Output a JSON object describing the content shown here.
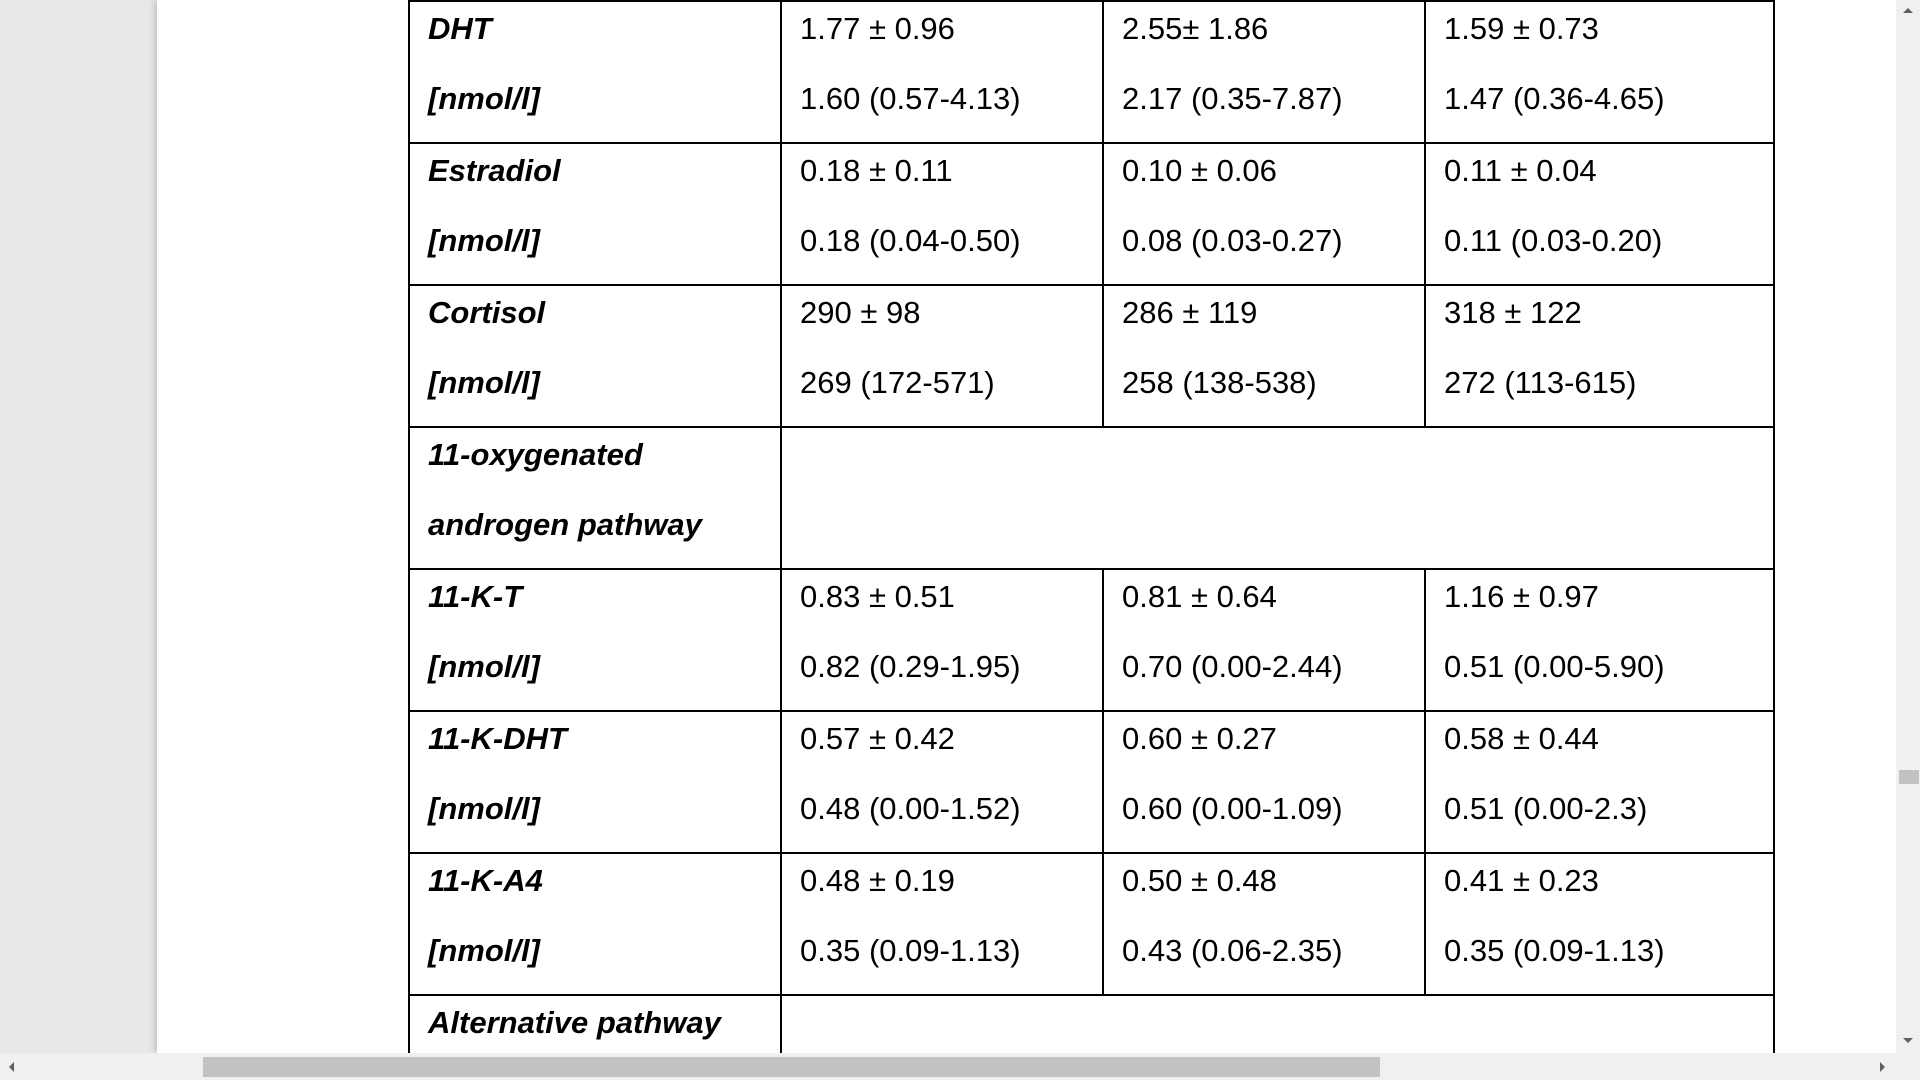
{
  "table": {
    "rows": [
      {
        "label": [
          "DHT",
          "[nmol/l]"
        ],
        "cells": [
          [
            "1.77 ± 0.96",
            "1.60 (0.57-4.13)"
          ],
          [
            "2.55± 1.86",
            "2.17 (0.35-7.87)"
          ],
          [
            "1.59 ± 0.73",
            "1.47 (0.36-4.65)"
          ]
        ]
      },
      {
        "label": [
          "Estradiol",
          "[nmol/l]"
        ],
        "cells": [
          [
            "0.18 ± 0.11",
            "0.18 (0.04-0.50)"
          ],
          [
            "0.10 ± 0.06",
            "0.08 (0.03-0.27)"
          ],
          [
            "0.11 ± 0.04",
            "0.11 (0.03-0.20)"
          ]
        ]
      },
      {
        "label": [
          "Cortisol",
          "[nmol/l]"
        ],
        "cells": [
          [
            "290 ± 98",
            "269 (172-571)"
          ],
          [
            "286 ± 119",
            "258 (138-538)"
          ],
          [
            "318 ± 122",
            "272 (113-615)"
          ]
        ]
      },
      {
        "label": [
          "11-oxygenated",
          "androgen pathway"
        ],
        "section": true
      },
      {
        "label": [
          "11-K-T",
          "[nmol/l]"
        ],
        "cells": [
          [
            "0.83 ± 0.51",
            "0.82 (0.29-1.95)"
          ],
          [
            "0.81 ± 0.64",
            "0.70 (0.00-2.44)"
          ],
          [
            "1.16 ± 0.97",
            "0.51 (0.00-5.90)"
          ]
        ]
      },
      {
        "label": [
          "11-K-DHT",
          "[nmol/l]"
        ],
        "cells": [
          [
            "0.57 ± 0.42",
            "0.48 (0.00-1.52)"
          ],
          [
            "0.60 ± 0.27",
            "0.60 (0.00-1.09)"
          ],
          [
            "0.58 ± 0.44",
            "0.51 (0.00-2.3)"
          ]
        ]
      },
      {
        "label": [
          "11-K-A4",
          "[nmol/l]"
        ],
        "cells": [
          [
            "0.48 ± 0.19",
            "0.35 (0.09-1.13)"
          ],
          [
            "0.50 ± 0.48",
            "0.43 (0.06-2.35)"
          ],
          [
            "0.41 ± 0.23",
            "0.35 (0.09-1.13)"
          ]
        ]
      },
      {
        "label": [
          "Alternative pathway"
        ],
        "section": true,
        "last": true
      }
    ]
  },
  "scrollbars": {
    "vertical_position": 0.72,
    "horizontal_position": 0.0
  }
}
